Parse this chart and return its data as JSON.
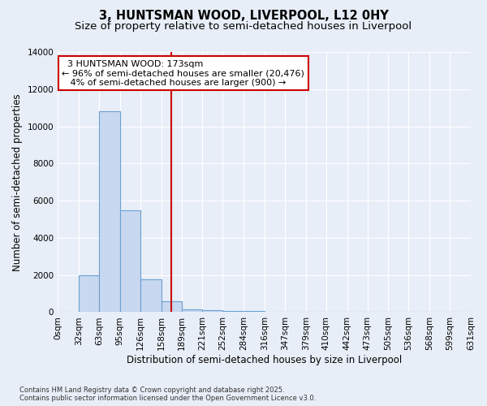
{
  "title": "3, HUNTSMAN WOOD, LIVERPOOL, L12 0HY",
  "subtitle": "Size of property relative to semi-detached houses in Liverpool",
  "xlabel": "Distribution of semi-detached houses by size in Liverpool",
  "ylabel": "Number of semi-detached properties",
  "footnote": "Contains HM Land Registry data © Crown copyright and database right 2025.\nContains public sector information licensed under the Open Government Licence v3.0.",
  "bin_edges": [
    0,
    32,
    63,
    95,
    126,
    158,
    189,
    221,
    252,
    284,
    316,
    347,
    379,
    410,
    442,
    473,
    505,
    536,
    568,
    599,
    631
  ],
  "bin_labels": [
    "0sqm",
    "32sqm",
    "63sqm",
    "95sqm",
    "126sqm",
    "158sqm",
    "189sqm",
    "221sqm",
    "252sqm",
    "284sqm",
    "316sqm",
    "347sqm",
    "379sqm",
    "410sqm",
    "442sqm",
    "473sqm",
    "505sqm",
    "536sqm",
    "568sqm",
    "599sqm",
    "631sqm"
  ],
  "bar_heights": [
    0,
    2000,
    10800,
    5500,
    1750,
    600,
    150,
    100,
    80,
    50,
    0,
    0,
    0,
    0,
    0,
    0,
    0,
    0,
    0,
    0
  ],
  "bar_color": "#c8d8f0",
  "bar_edge_color": "#6aa0d0",
  "property_size": 173,
  "property_label": "3 HUNTSMAN WOOD: 173sqm",
  "pct_smaller": 96,
  "count_smaller": 20476,
  "pct_larger": 4,
  "count_larger": 900,
  "annotation_box_color": "#ffffff",
  "annotation_box_edge_color": "#cc0000",
  "vline_color": "#cc0000",
  "ylim": [
    0,
    14000
  ],
  "background_color": "#e8eef8",
  "grid_color": "#ffffff",
  "title_fontsize": 10.5,
  "subtitle_fontsize": 9.5,
  "tick_fontsize": 7.5,
  "ylabel_fontsize": 8.5,
  "xlabel_fontsize": 8.5,
  "annotation_fontsize": 8
}
